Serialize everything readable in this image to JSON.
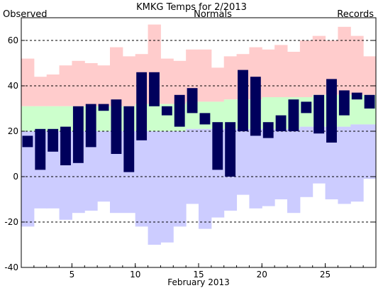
{
  "header": {
    "title": "KMKG Temps for 2/2013",
    "observed_label": "Observed",
    "normals_label": "Normals",
    "records_label": "Records"
  },
  "colors": {
    "observed": "#00005c",
    "normal": "#ccffcc",
    "record_high": "#ffcccc",
    "record_low": "#ccccff",
    "title_text": "#000000",
    "observed_text": "#00005c",
    "normals_text": "#007a00",
    "records_text": "#b399e6"
  },
  "chart_data": {
    "type": "bar",
    "title": "KMKG Temps for 2/2013",
    "xlabel": "February 2013",
    "ylabel": "",
    "xlim": [
      1,
      29
    ],
    "ylim": [
      -40,
      70
    ],
    "yticks": [
      -40,
      -20,
      0,
      20,
      40,
      60
    ],
    "xticks": [
      5,
      10,
      15,
      20,
      25
    ],
    "grid": true,
    "days": [
      1,
      2,
      3,
      4,
      5,
      6,
      7,
      8,
      9,
      10,
      11,
      12,
      13,
      14,
      15,
      16,
      17,
      18,
      19,
      20,
      21,
      22,
      23,
      24,
      25,
      26,
      27,
      28
    ],
    "series": [
      {
        "name": "Records",
        "kind": "record_high",
        "values": [
          52,
          44,
          45,
          49,
          51,
          50,
          49,
          57,
          53,
          54,
          67,
          52,
          51,
          56,
          56,
          48,
          53,
          54,
          57,
          56,
          58,
          55,
          60,
          62,
          60,
          66,
          62,
          53
        ]
      },
      {
        "name": "Records",
        "kind": "record_low",
        "values": [
          -22,
          -14,
          -14,
          -19,
          -16,
          -15,
          -11,
          -16,
          -16,
          -22,
          -30,
          -29,
          -22,
          -12,
          -23,
          -18,
          -15,
          -8,
          -14,
          -13,
          -10,
          -16,
          -9,
          -3,
          -10,
          -12,
          -11,
          -1
        ]
      },
      {
        "name": "Normals",
        "kind": "normal_high",
        "values": [
          31,
          31,
          31,
          31,
          31,
          31,
          31,
          31,
          31,
          32,
          32,
          32,
          32,
          33,
          33,
          33,
          34,
          34,
          34,
          35,
          35,
          35,
          35,
          36,
          36,
          36,
          36,
          36
        ]
      },
      {
        "name": "Normals",
        "kind": "normal_low",
        "values": [
          20,
          20,
          20,
          20,
          20,
          20,
          20,
          20,
          20,
          20,
          20,
          20,
          20,
          21,
          21,
          21,
          21,
          21,
          21,
          21,
          21,
          21,
          22,
          22,
          22,
          22,
          23,
          23
        ]
      },
      {
        "name": "Observed",
        "kind": "observed_high",
        "values": [
          18,
          21,
          21,
          22,
          31,
          32,
          32,
          34,
          31,
          46,
          46,
          31,
          36,
          39,
          28,
          24,
          24,
          47,
          44,
          24,
          27,
          34,
          33,
          36,
          43,
          38,
          37,
          36
        ]
      },
      {
        "name": "Observed",
        "kind": "observed_low",
        "values": [
          13,
          3,
          11,
          5,
          6,
          13,
          29,
          10,
          2,
          16,
          31,
          27,
          22,
          28,
          23,
          3,
          0,
          20,
          18,
          17,
          20,
          20,
          28,
          19,
          15,
          27,
          34,
          30
        ]
      }
    ]
  }
}
